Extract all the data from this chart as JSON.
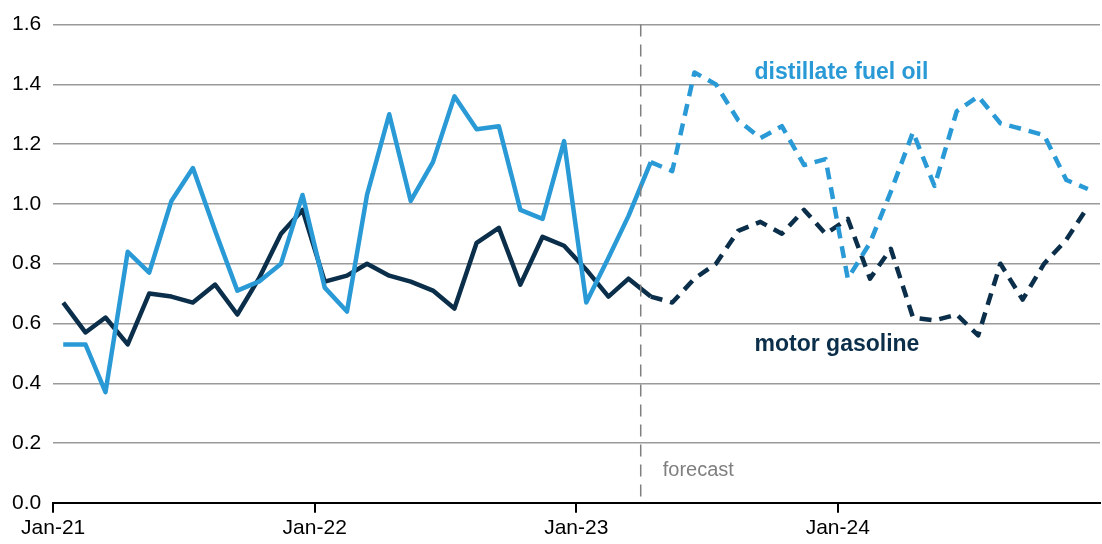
{
  "chart_data": {
    "type": "line",
    "xlim": [
      "2021-01-01",
      "2025-01-01"
    ],
    "xticks": [
      {
        "value": "2021-01-01",
        "label": "Jan-21"
      },
      {
        "value": "2022-01-01",
        "label": "Jan-22"
      },
      {
        "value": "2023-01-01",
        "label": "Jan-23"
      },
      {
        "value": "2024-01-01",
        "label": "Jan-24"
      }
    ],
    "ylim": [
      0,
      1.6
    ],
    "yticks": [
      {
        "value": 0,
        "label": "0.0"
      },
      {
        "value": 0.2,
        "label": "0.2"
      },
      {
        "value": 0.4,
        "label": "0.4"
      },
      {
        "value": 0.6,
        "label": "0.6"
      },
      {
        "value": 0.8,
        "label": "0.8"
      },
      {
        "value": 1,
        "label": "1.0"
      },
      {
        "value": 1.2,
        "label": "1.2"
      },
      {
        "value": 1.4,
        "label": "1.4"
      },
      {
        "value": 1.6,
        "label": "1.6"
      }
    ],
    "grid": "y",
    "legend": false,
    "marker": "none",
    "series": [
      {
        "color": "#2a9ad6",
        "line_style": "solid",
        "x": [
          "2021-01-15",
          "2021-02-15",
          "2021-03-15",
          "2021-04-15",
          "2021-05-15",
          "2021-06-15",
          "2021-07-15",
          "2021-08-15",
          "2021-09-15",
          "2021-10-15",
          "2021-11-15",
          "2021-12-15",
          "2022-01-15",
          "2022-02-15",
          "2022-03-15",
          "2022-04-15",
          "2022-05-15",
          "2022-06-15",
          "2022-07-15",
          "2022-08-15",
          "2022-09-15",
          "2022-10-15",
          "2022-11-15",
          "2022-12-15",
          "2023-01-15",
          "2023-02-15",
          "2023-03-15",
          "2023-04-15"
        ],
        "values": [
          0.53,
          0.53,
          0.37,
          0.84,
          0.77,
          1.01,
          1.12,
          0.91,
          0.71,
          0.74,
          0.8,
          1.03,
          0.72,
          0.64,
          1.03,
          1.3,
          1.01,
          1.14,
          1.36,
          1.25,
          1.26,
          0.98,
          0.95,
          1.21,
          0.67,
          0.82,
          0.96,
          1.14
        ]
      },
      {
        "color": "#0b2f4a",
        "line_style": "solid",
        "x": [
          "2021-01-15",
          "2021-02-15",
          "2021-03-15",
          "2021-04-15",
          "2021-05-15",
          "2021-06-15",
          "2021-07-15",
          "2021-08-15",
          "2021-09-15",
          "2021-10-15",
          "2021-11-15",
          "2021-12-15",
          "2022-01-15",
          "2022-02-15",
          "2022-03-15",
          "2022-04-15",
          "2022-05-15",
          "2022-06-15",
          "2022-07-15",
          "2022-08-15",
          "2022-09-15",
          "2022-10-15",
          "2022-11-15",
          "2022-12-15",
          "2023-01-15",
          "2023-02-15",
          "2023-03-15",
          "2023-04-15"
        ],
        "values": [
          0.67,
          0.57,
          0.62,
          0.53,
          0.7,
          0.69,
          0.67,
          0.73,
          0.63,
          0.75,
          0.9,
          0.98,
          0.74,
          0.76,
          0.8,
          0.76,
          0.74,
          0.71,
          0.65,
          0.87,
          0.92,
          0.73,
          0.89,
          0.86,
          0.78,
          0.69,
          0.75,
          0.69
        ]
      },
      {
        "name": "distillate fuel oil",
        "color": "#2a9ad6",
        "line_style": "dashed",
        "x": [
          "2023-04-15",
          "2023-05-15",
          "2023-06-15",
          "2023-07-15",
          "2023-08-15",
          "2023-09-15",
          "2023-10-15",
          "2023-11-15",
          "2023-12-15",
          "2024-01-15",
          "2024-02-15",
          "2024-03-15",
          "2024-04-15",
          "2024-05-15",
          "2024-06-15",
          "2024-07-15",
          "2024-08-15",
          "2024-09-15",
          "2024-10-15",
          "2024-11-15",
          "2024-12-15"
        ],
        "values": [
          1.14,
          1.11,
          1.44,
          1.4,
          1.28,
          1.22,
          1.26,
          1.13,
          1.15,
          0.75,
          0.87,
          1.04,
          1.24,
          1.06,
          1.31,
          1.36,
          1.27,
          1.25,
          1.23,
          1.08,
          1.05
        ]
      },
      {
        "name": "motor gasoline",
        "color": "#0b2f4a",
        "line_style": "dashed",
        "x": [
          "2023-04-15",
          "2023-05-15",
          "2023-06-15",
          "2023-07-15",
          "2023-08-15",
          "2023-09-15",
          "2023-10-15",
          "2023-11-15",
          "2023-12-15",
          "2024-01-15",
          "2024-02-15",
          "2024-03-15",
          "2024-04-15",
          "2024-05-15",
          "2024-06-15",
          "2024-07-15",
          "2024-08-15",
          "2024-09-15",
          "2024-10-15",
          "2024-11-15",
          "2024-12-15"
        ],
        "values": [
          0.69,
          0.67,
          0.75,
          0.8,
          0.91,
          0.94,
          0.9,
          0.98,
          0.9,
          0.95,
          0.75,
          0.85,
          0.62,
          0.61,
          0.63,
          0.56,
          0.8,
          0.68,
          0.8,
          0.88,
          0.99
        ]
      }
    ],
    "ref_lines": [
      {
        "axis": "x",
        "value": "2023-04-01",
        "label": "forecast",
        "color": "#7f7f7f",
        "line_style": "dashed"
      }
    ]
  }
}
